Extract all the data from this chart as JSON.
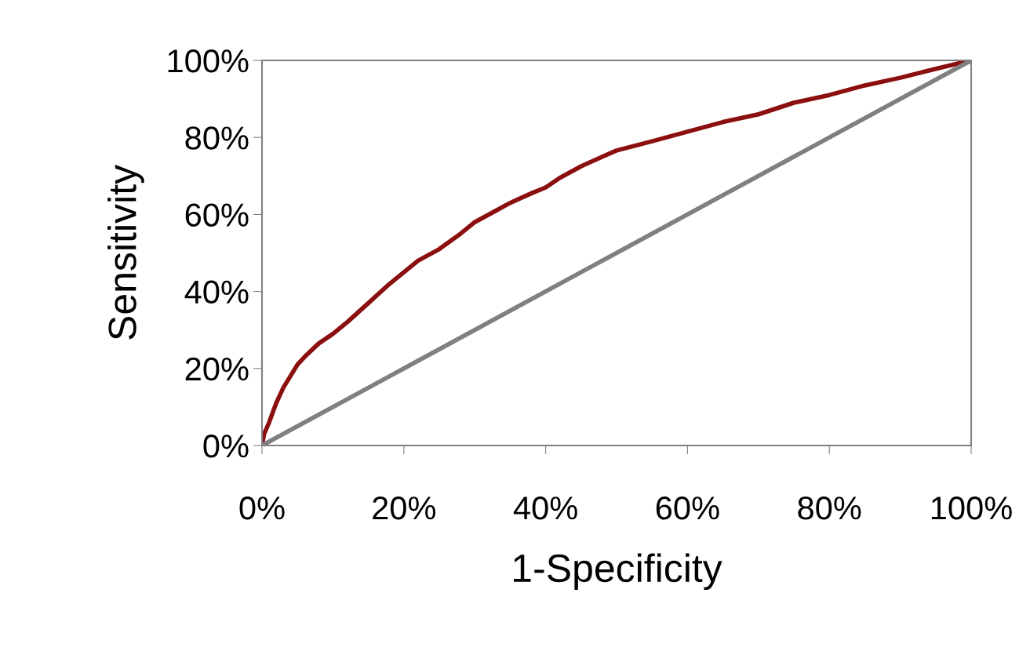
{
  "chart_data": {
    "type": "line",
    "xlabel": "1-Specificity",
    "ylabel": "Sensitivity",
    "series": [
      {
        "color": "#8b0f0f",
        "x": [
          0,
          0.3,
          1,
          2,
          3,
          4,
          5,
          6,
          8,
          10,
          12,
          15,
          18,
          20,
          22,
          25,
          28,
          30,
          33,
          35,
          38,
          40,
          42,
          45,
          48,
          50,
          55,
          60,
          65,
          70,
          75,
          80,
          85,
          90,
          95,
          100
        ],
        "values": [
          0,
          3,
          6,
          11,
          15,
          18,
          21,
          23,
          26.5,
          29,
          32,
          37,
          42,
          45,
          48,
          51,
          55,
          58,
          61,
          63,
          65.5,
          67,
          69.5,
          72.5,
          75,
          76.6,
          79,
          81.5,
          84,
          86,
          89,
          91,
          93.5,
          95.5,
          97.8,
          100
        ]
      },
      {
        "color": "#808080",
        "x": [
          0,
          100
        ],
        "values": [
          0,
          100
        ]
      }
    ],
    "xlim": [
      0,
      100
    ],
    "ylim": [
      0,
      100
    ],
    "xticks": [
      {
        "value": 0,
        "label": "0%"
      },
      {
        "value": 20,
        "label": "20%"
      },
      {
        "value": 40,
        "label": "40%"
      },
      {
        "value": 60,
        "label": "60%"
      },
      {
        "value": 80,
        "label": "80%"
      },
      {
        "value": 100,
        "label": "100%"
      }
    ],
    "yticks": [
      {
        "value": 0,
        "label": "0%"
      },
      {
        "value": 20,
        "label": "20%"
      },
      {
        "value": 40,
        "label": "40%"
      },
      {
        "value": 60,
        "label": "60%"
      },
      {
        "value": 80,
        "label": "80%"
      },
      {
        "value": 100,
        "label": "100%"
      }
    ],
    "grid": false,
    "legend": false
  }
}
